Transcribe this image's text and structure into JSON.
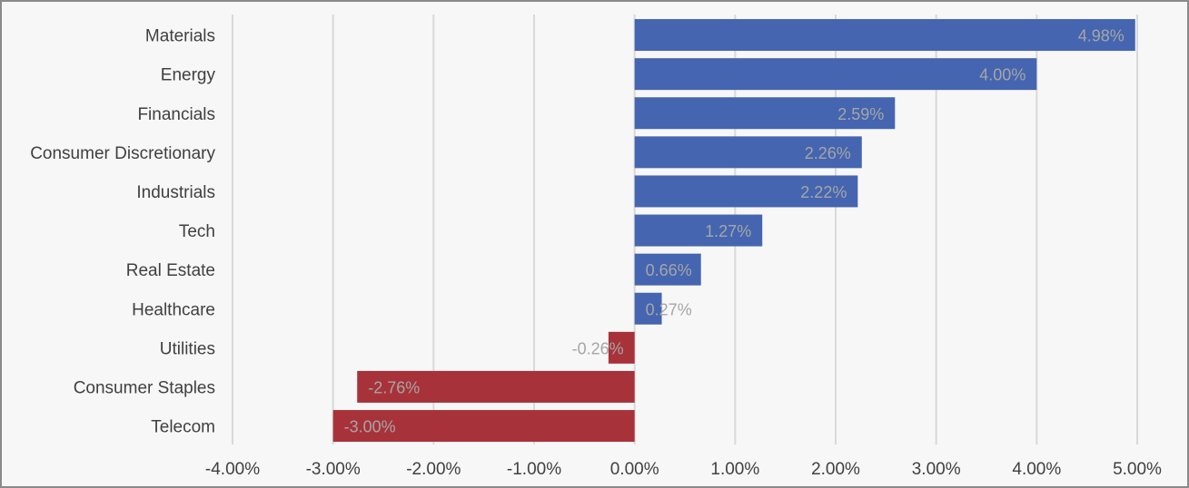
{
  "chart_data": {
    "type": "bar",
    "orientation": "horizontal",
    "categories": [
      "Materials",
      "Energy",
      "Financials",
      "Consumer Discretionary",
      "Industrials",
      "Tech",
      "Real Estate",
      "Healthcare",
      "Utilities",
      "Consumer Staples",
      "Telecom"
    ],
    "values": [
      4.98,
      4.0,
      2.59,
      2.26,
      2.22,
      1.27,
      0.66,
      0.27,
      -0.26,
      -2.76,
      -3.0
    ],
    "data_labels": [
      "4.98%",
      "4.00%",
      "2.59%",
      "2.26%",
      "2.22%",
      "1.27%",
      "0.66%",
      "0.27%",
      "-0.26%",
      "-2.76%",
      "-3.00%"
    ],
    "xlim": [
      -4,
      5
    ],
    "x_ticks": [
      -4,
      -3,
      -2,
      -1,
      0,
      1,
      2,
      3,
      4,
      5
    ],
    "x_tick_labels": [
      "-4.00%",
      "-3.00%",
      "-2.00%",
      "-1.00%",
      "0.00%",
      "1.00%",
      "2.00%",
      "3.00%",
      "4.00%",
      "5.00%"
    ],
    "title": "",
    "xlabel": "",
    "ylabel": "",
    "grid": "vertical",
    "legend": "none",
    "colors": {
      "positive": "#4565b0",
      "negative": "#a8323a",
      "grid": "#d9d9d9",
      "text": "#404040",
      "data_label": "#a6a6a6",
      "background": "#f7f7f7",
      "border": "#8a8a8a"
    }
  }
}
